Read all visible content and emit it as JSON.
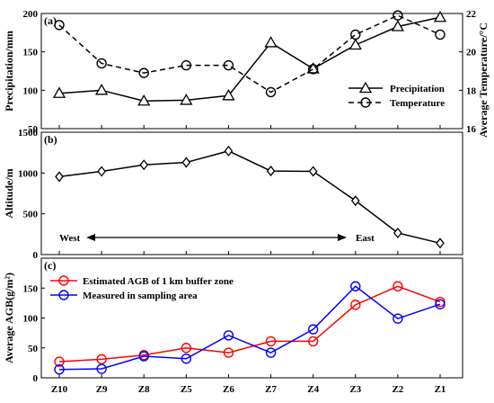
{
  "chart_data": [
    {
      "panel_label": "(a)",
      "type": "line",
      "categories": [
        "Z10",
        "Z9",
        "Z8",
        "Z5",
        "Z6",
        "Z7",
        "Z4",
        "Z3",
        "Z2",
        "Z1"
      ],
      "ylabel": "Precipitation/mm",
      "ylim": [
        50,
        200
      ],
      "yticks": [
        50,
        100,
        150,
        200
      ],
      "y2label": "Average Temperature/°C",
      "y2lim": [
        16,
        22
      ],
      "y2ticks": [
        16,
        18,
        20,
        22
      ],
      "legend_position": "bottom-right",
      "series": [
        {
          "name": "Precipitation",
          "axis": "left",
          "marker": "triangle",
          "style": "solid",
          "color": "#000000",
          "values": [
            96,
            100,
            86,
            87,
            93,
            162,
            128,
            159,
            183,
            195
          ]
        },
        {
          "name": "Temperature",
          "axis": "right",
          "marker": "circle",
          "style": "dashed",
          "color": "#000000",
          "values": [
            21.4,
            19.4,
            18.9,
            19.3,
            19.3,
            17.9,
            19.1,
            20.9,
            21.9,
            20.9
          ]
        }
      ]
    },
    {
      "panel_label": "(b)",
      "type": "line",
      "categories": [
        "Z10",
        "Z9",
        "Z8",
        "Z5",
        "Z6",
        "Z7",
        "Z4",
        "Z3",
        "Z2",
        "Z1"
      ],
      "ylabel": "Altitude/m",
      "ylim": [
        0,
        1500
      ],
      "yticks": [
        0,
        500,
        1000,
        1500
      ],
      "annotation": {
        "left": "West",
        "right": "East"
      },
      "series": [
        {
          "marker": "diamond",
          "style": "solid",
          "color": "#000000",
          "values": [
            955,
            1020,
            1100,
            1130,
            1270,
            1025,
            1020,
            660,
            265,
            140
          ]
        }
      ]
    },
    {
      "panel_label": "(c)",
      "type": "line",
      "categories": [
        "Z10",
        "Z9",
        "Z8",
        "Z5",
        "Z6",
        "Z7",
        "Z4",
        "Z3",
        "Z2",
        "Z1"
      ],
      "ylabel": "Average AGB(g/m²)",
      "ylim": [
        0,
        200
      ],
      "yticks": [
        0,
        50,
        100,
        150
      ],
      "legend_position": "top-left",
      "series": [
        {
          "name": "Estimated AGB of 1 km buffer zone",
          "marker": "circle",
          "style": "solid",
          "color": "#ff0000",
          "values": [
            27,
            31,
            38,
            50,
            42,
            61,
            61,
            122,
            153,
            127
          ]
        },
        {
          "name": "Measured in sampling area",
          "marker": "circle",
          "style": "solid",
          "color": "#0000ff",
          "values": [
            14,
            15,
            36,
            32,
            71,
            42,
            81,
            153,
            99,
            123
          ]
        }
      ]
    }
  ]
}
